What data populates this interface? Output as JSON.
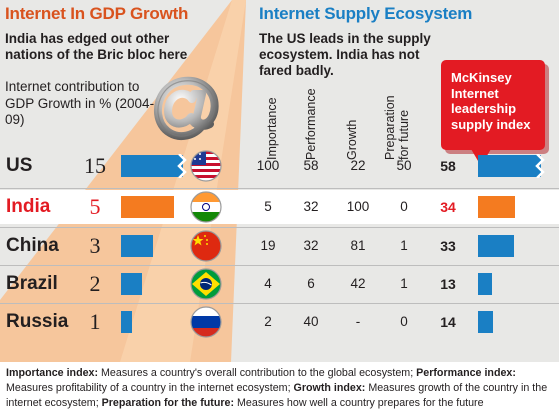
{
  "left": {
    "title": "Internet In GDP Growth",
    "subtitle": "India has edged out other nations of the Bric bloc here",
    "ylabel": "Internet contribution to GDP Growth in % (2004-09)"
  },
  "right": {
    "title": "Internet Supply Ecosystem",
    "subtitle": "The US leads in the supply ecosystem. India has not fared badly.",
    "columns": [
      "Importance",
      "Performance",
      "Growth",
      "Preparation for future"
    ],
    "callout": "McKinsey Internet leadership supply index"
  },
  "colors": {
    "accent_orange": "#f47b20",
    "accent_blue": "#1a7fc4",
    "callout_red": "#e31b23",
    "highlight_red": "#e31b23"
  },
  "footnote": {
    "importance_label": "Importance index:",
    "importance_text": " Measures a country's overall contribution to the global ecosystem; ",
    "performance_label": "Performance index:",
    "performance_text": " Measures profitability of a country in the internet ecosystem; ",
    "growth_label": "Growth index:",
    "growth_text": " Measures growth of the country in the internet ecosystem; ",
    "preparation_label": "Preparation for the future:",
    "preparation_text": " Measures how well a country prepares for the future"
  },
  "chart_data": [
    {
      "type": "bar",
      "title": "Internet In GDP Growth",
      "ylabel": "Internet contribution to GDP Growth in % (2004-09)",
      "categories": [
        "US",
        "India",
        "China",
        "Brazil",
        "Russia"
      ],
      "values": [
        15,
        5,
        3,
        2,
        1
      ],
      "labels": [
        "15",
        "5",
        "3",
        "2",
        "1"
      ],
      "highlight": "India",
      "broken_axis_categories": [
        "US"
      ]
    },
    {
      "type": "table",
      "title": "Internet Supply Ecosystem",
      "columns": [
        "Importance",
        "Performance",
        "Growth",
        "Preparation for future"
      ],
      "rows": [
        {
          "country": "US",
          "flag": "us-flag-icon",
          "values": [
            "100",
            "58",
            "22",
            "50"
          ],
          "index": 58
        },
        {
          "country": "India",
          "flag": "india-flag-icon",
          "values": [
            "5",
            "32",
            "100",
            "0"
          ],
          "index": 34
        },
        {
          "country": "China",
          "flag": "china-flag-icon",
          "values": [
            "19",
            "32",
            "81",
            "1"
          ],
          "index": 33
        },
        {
          "country": "Brazil",
          "flag": "brazil-flag-icon",
          "values": [
            "4",
            "6",
            "42",
            "1"
          ],
          "index": 13
        },
        {
          "country": "Russia",
          "flag": "russia-flag-icon",
          "values": [
            "2",
            "40",
            "-",
            "0"
          ],
          "index": 14
        }
      ]
    }
  ]
}
